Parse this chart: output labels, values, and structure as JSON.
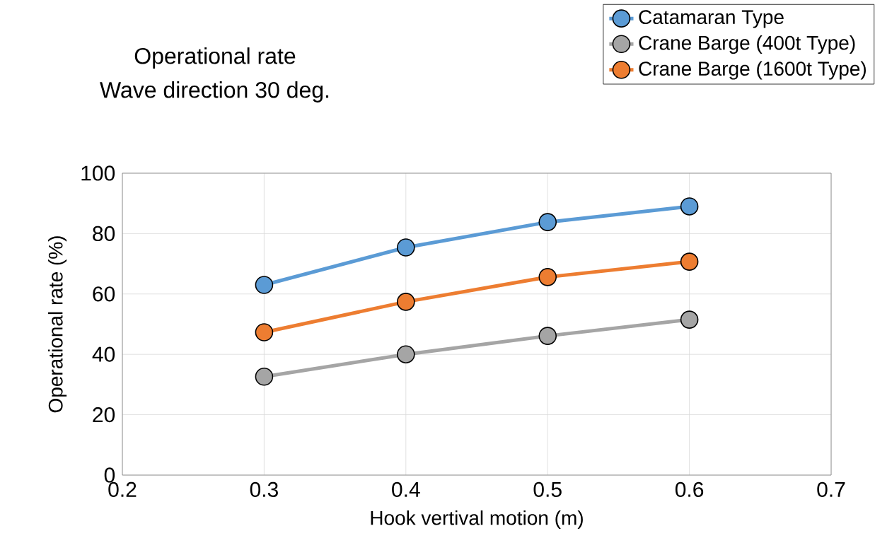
{
  "chart_data": {
    "type": "line",
    "title": "Operational rate",
    "subtitle": "Wave direction 30 deg.",
    "xlabel": "Hook vertival motion (m)",
    "ylabel": "Operational rate  (%)",
    "x": [
      0.3,
      0.4,
      0.5,
      0.6
    ],
    "series": [
      {
        "name": "Catamaran Type",
        "color": "#5b9bd5",
        "values": [
          63,
          75.4,
          83.8,
          89
        ]
      },
      {
        "name": "Crane Barge (400t Type)",
        "color": "#a5a5a5",
        "values": [
          32.6,
          40,
          46.1,
          51.5
        ]
      },
      {
        "name": "Crane Barge (1600t Type)",
        "color": "#ed7d31",
        "values": [
          47.3,
          57.4,
          65.6,
          70.7
        ]
      }
    ],
    "xlim": [
      0.2,
      0.7
    ],
    "ylim": [
      0,
      100
    ],
    "xticks": [
      0.2,
      0.3,
      0.4,
      0.5,
      0.6,
      0.7
    ],
    "yticks": [
      0,
      20,
      40,
      60,
      80,
      100
    ],
    "grid": true,
    "legend": "top right",
    "marker": "circle",
    "line_style": "solid"
  }
}
